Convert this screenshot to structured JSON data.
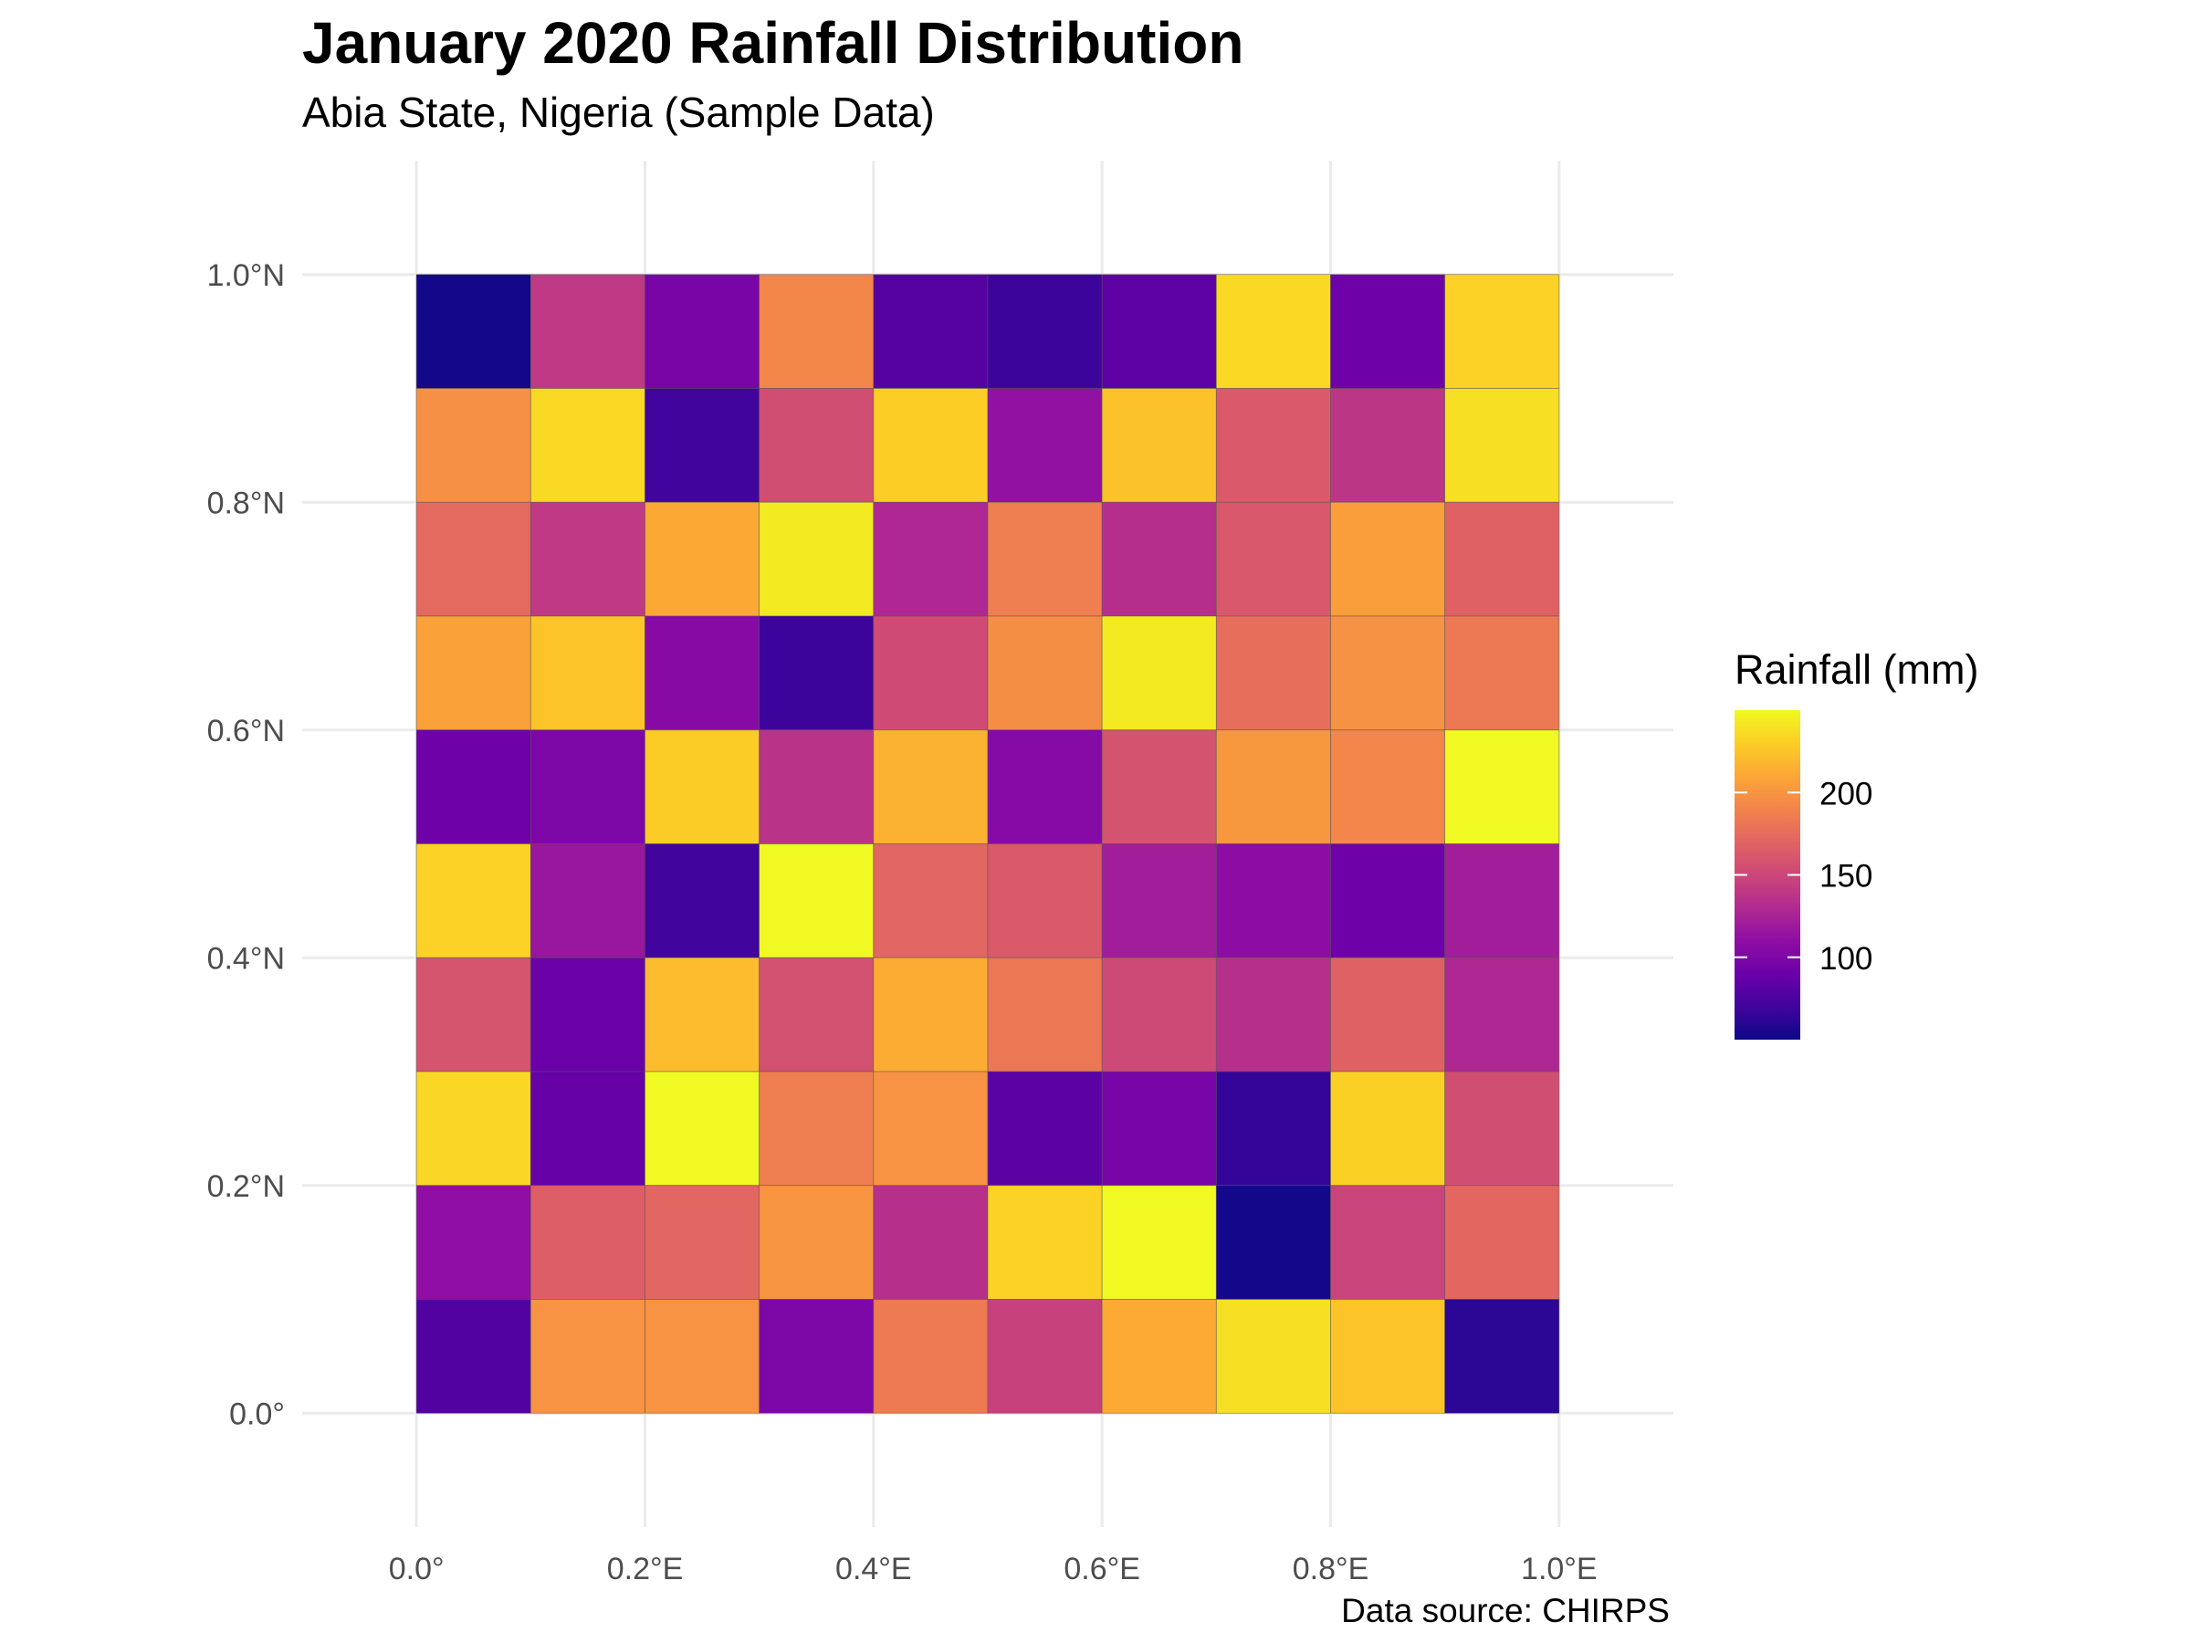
{
  "chart_data": {
    "type": "heatmap",
    "title": "January 2020 Rainfall Distribution",
    "subtitle": "Abia State, Nigeria (Sample Data)",
    "caption": "Data source: CHIRPS",
    "xlabel": "",
    "ylabel": "",
    "x_ticks": [
      "0.0°",
      "0.2°E",
      "0.4°E",
      "0.6°E",
      "0.8°E",
      "1.0°E"
    ],
    "x_tick_values": [
      0.0,
      0.2,
      0.4,
      0.6,
      0.8,
      1.0
    ],
    "y_ticks": [
      "0.0°",
      "0.2°N",
      "0.4°N",
      "0.6°N",
      "0.8°N",
      "1.0°N"
    ],
    "y_tick_values": [
      0.0,
      0.2,
      0.4,
      0.6,
      0.8,
      1.0
    ],
    "xlim": [
      -0.1,
      1.1
    ],
    "ylim": [
      -0.1,
      1.1
    ],
    "grid": true,
    "legend_position": "right",
    "cell_size": 0.1,
    "x_centers": [
      0.05,
      0.15,
      0.25,
      0.35,
      0.45,
      0.55,
      0.65,
      0.75,
      0.85,
      0.95
    ],
    "y_centers_top_to_bottom": [
      0.95,
      0.85,
      0.75,
      0.65,
      0.55,
      0.45,
      0.35,
      0.25,
      0.15,
      0.05
    ],
    "values": [
      [
        52,
        140,
        98,
        192,
        80,
        68,
        84,
        235,
        92,
        232
      ],
      [
        197,
        235,
        70,
        155,
        230,
        112,
        224,
        163,
        138,
        238
      ],
      [
        173,
        140,
        211,
        243,
        128,
        186,
        133,
        162,
        205,
        168
      ],
      [
        207,
        225,
        106,
        68,
        153,
        196,
        243,
        176,
        198,
        183
      ],
      [
        92,
        100,
        229,
        136,
        216,
        105,
        158,
        202,
        191,
        250
      ],
      [
        232,
        116,
        70,
        250,
        171,
        163,
        121,
        109,
        92,
        121
      ],
      [
        159,
        90,
        221,
        157,
        213,
        182,
        152,
        134,
        168,
        128
      ],
      [
        234,
        88,
        250,
        186,
        199,
        82,
        97,
        65,
        231,
        155
      ],
      [
        110,
        166,
        171,
        200,
        134,
        232,
        252,
        52,
        148,
        172
      ],
      [
        78,
        199,
        199,
        100,
        184,
        146,
        212,
        238,
        225,
        62
      ]
    ],
    "colorbar": {
      "title": "Rainfall (mm)",
      "min": 50,
      "max": 250,
      "breaks": [
        100,
        150,
        200
      ],
      "break_labels": [
        "100",
        "150",
        "200"
      ],
      "palette": "plasma"
    }
  }
}
